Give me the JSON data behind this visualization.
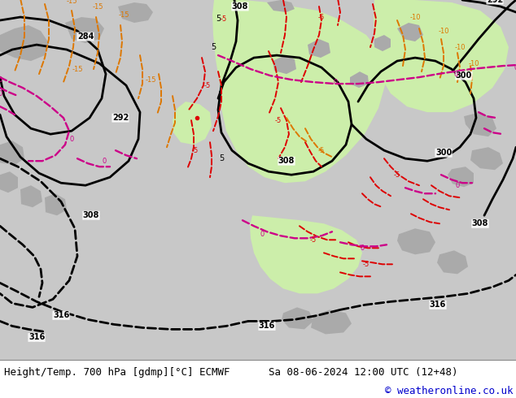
{
  "title_left": "Height/Temp. 700 hPa [gdmp][°C] ECMWF",
  "title_right": "Sa 08-06-2024 12:00 UTC (12+48)",
  "copyright": "© weatheronline.co.uk",
  "bg_color": "#c8c8c8",
  "green_color": "#cceeaa",
  "white_bar": "#ffffff",
  "copyright_color": "#0000cc",
  "black_lw": 2.0,
  "dashed_lw": 1.4,
  "label_fs": 7,
  "title_fs": 9
}
